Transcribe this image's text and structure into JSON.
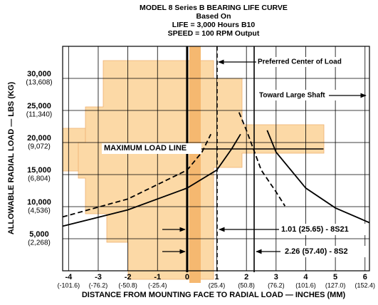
{
  "chart_data": {
    "type": "line",
    "title": "MODEL 8 Series B BEARING LIFE CURVE",
    "subtitle": [
      "Based On",
      "LIFE = 3,000 Hours B10",
      "SPEED = 100 RPM Output"
    ],
    "x_label": "DISTANCE FROM MOUNTING FACE TO RADIAL LOAD — INCHES (MM)",
    "y_label": "ALLOWABLE RADIAL LOAD — LBS (KG)",
    "xlim": [
      -4.2,
      6.15
    ],
    "ylim": [
      0,
      35000
    ],
    "xticks": [
      -4,
      -3,
      -2,
      -1,
      0,
      1,
      2,
      3,
      4,
      5,
      6
    ],
    "x_tick_secondary": [
      "(-101.6)",
      "(-76.2)",
      "(-50.8)",
      "(-25.4)",
      null,
      "(25.4)",
      "(50.8)",
      "(76.2)",
      "(101.6)",
      "(127.0)",
      "(152.4)"
    ],
    "yticks": [
      {
        "value": 5000,
        "label": "5,000"
      },
      {
        "value": 10000,
        "label": "10,000"
      },
      {
        "value": 15000,
        "label": "15,000"
      },
      {
        "value": 20000,
        "label": "20,000"
      },
      {
        "value": 25000,
        "label": "25,000"
      },
      {
        "value": 30000,
        "label": "30,000"
      }
    ],
    "y_tick_secondary": [
      "(2,268)",
      "(4,536)",
      "(6,804)",
      "(9,072)",
      "(11,340)",
      "(13,608)"
    ],
    "grid": true,
    "series": [
      {
        "color": "#000000",
        "dash": false,
        "x": [
          -4.2,
          -2,
          0,
          1,
          1.5,
          1.8
        ],
        "values": [
          6950,
          9500,
          12900,
          15700,
          19000,
          21300
        ]
      },
      {
        "color": "#000000",
        "dash": true,
        "x": [
          -4.2,
          -2,
          0,
          0.5,
          0.8
        ],
        "values": [
          8400,
          11200,
          15700,
          18500,
          21300
        ]
      },
      {
        "color": "#000000",
        "dash": false,
        "x": [
          2.7,
          3,
          4,
          5,
          6,
          6.15
        ],
        "values": [
          21900,
          18500,
          12900,
          9800,
          7800,
          7500
        ]
      },
      {
        "color": "#000000",
        "dash": true,
        "x": [
          1.75,
          2,
          2.5,
          3,
          3.3
        ],
        "values": [
          24700,
          21900,
          15700,
          12300,
          10100
        ]
      }
    ],
    "reference_lines": [
      {
        "x": 0,
        "style": "solid"
      },
      {
        "x": 1.01,
        "style": "dashed",
        "label": "1.01 (25.65) - 8S21"
      },
      {
        "x": 2.26,
        "style": "solid",
        "label": "2.26 (57.40) - 8S2"
      }
    ],
    "max_load_line": {
      "y": 19000,
      "x": [
        0,
        4.6
      ],
      "label": "MAXIMUM LOAD LINE"
    },
    "annotations": [
      "Preferred Center of Load",
      "Toward Large Shaft"
    ]
  }
}
